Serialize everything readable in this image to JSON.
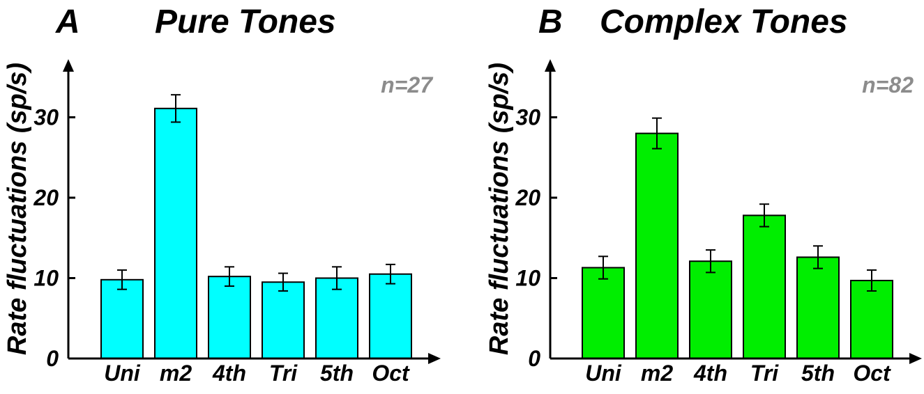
{
  "chart_data": [
    {
      "type": "bar",
      "panel_letter": "A",
      "title": "Pure Tones",
      "ylabel": "Rate fluctuations (sp/s)",
      "xlabel": "",
      "annotation": "n=27",
      "categories": [
        "Uni",
        "m2",
        "4th",
        "Tri",
        "5th",
        "Oct"
      ],
      "values": [
        9.8,
        31.1,
        10.2,
        9.5,
        10.0,
        10.5
      ],
      "errors": [
        1.2,
        1.7,
        1.2,
        1.1,
        1.4,
        1.2
      ],
      "yticks": [
        0,
        10,
        20,
        30
      ],
      "ylim": [
        0,
        37
      ],
      "bar_color": "#00ffff",
      "annotation_color": "#8c8c8c",
      "grid": false
    },
    {
      "type": "bar",
      "panel_letter": "B",
      "title": "Complex Tones",
      "ylabel": "Rate fluctuations (sp/s)",
      "xlabel": "",
      "annotation": "n=82",
      "categories": [
        "Uni",
        "m2",
        "4th",
        "Tri",
        "5th",
        "Oct"
      ],
      "values": [
        11.3,
        28.0,
        12.1,
        17.8,
        12.6,
        9.7
      ],
      "errors": [
        1.4,
        1.9,
        1.4,
        1.4,
        1.4,
        1.3
      ],
      "yticks": [
        0,
        10,
        20,
        30
      ],
      "ylim": [
        0,
        37
      ],
      "bar_color": "#00ee00",
      "annotation_color": "#8c8c8c",
      "grid": false
    }
  ]
}
